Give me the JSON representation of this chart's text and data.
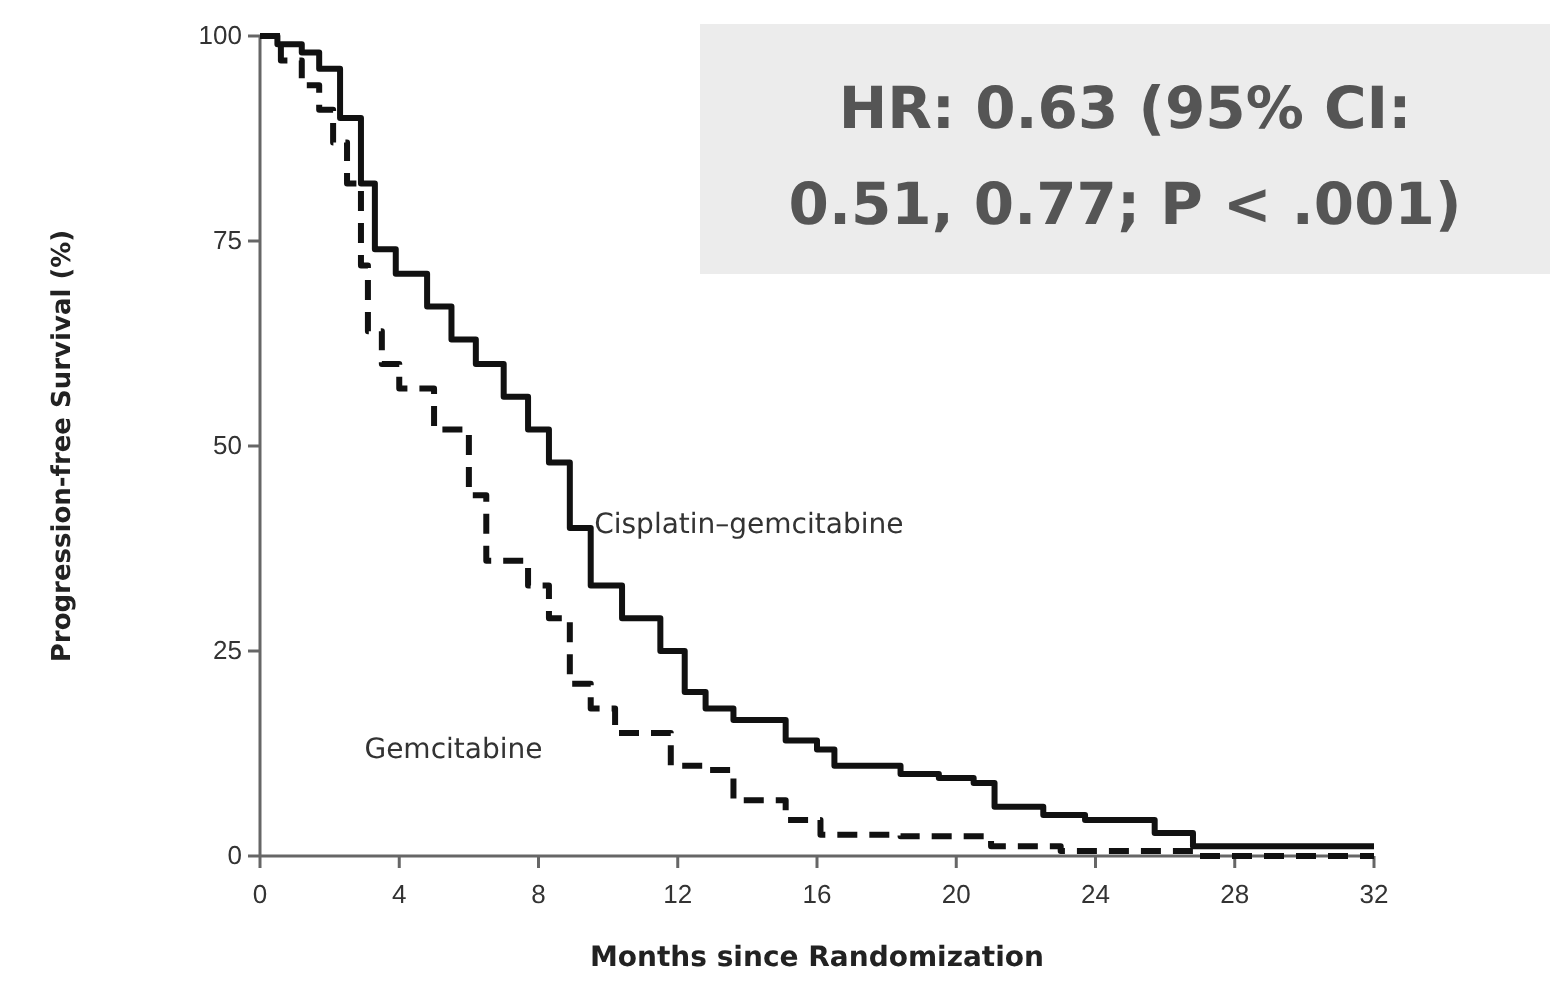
{
  "chart_data": {
    "type": "step",
    "xlabel": "Months since Randomization",
    "ylabel": "Progression-free Survival (%)",
    "xlim": [
      0,
      32
    ],
    "xticks": [
      0,
      4,
      8,
      12,
      16,
      20,
      24,
      28,
      32
    ],
    "ylim": [
      0,
      100
    ],
    "yticks": [
      0,
      25,
      50,
      75,
      100
    ],
    "grid": false,
    "marker": "none",
    "annotations": [
      "HR: 0.63 (95% CI: 0.51, 0.77; P < .001)"
    ],
    "series": [
      {
        "name": "Cisplatin–gemcitabine",
        "color": "#111111",
        "line_style": "solid",
        "x": [
          0,
          0.5,
          1.2,
          1.7,
          2.3,
          2.9,
          3.3,
          3.9,
          4.8,
          5.5,
          6.2,
          7,
          7.7,
          8.3,
          8.9,
          9.5,
          10.4,
          11,
          11.5,
          12.2,
          12.8,
          13.6,
          15.1,
          16,
          16.5,
          18.4,
          19.5,
          20.5,
          21.1,
          22.5,
          23.7,
          25.7,
          26.8,
          32
        ],
        "values": [
          100,
          99,
          98,
          96,
          90,
          82,
          74,
          71,
          67,
          63,
          60,
          56,
          52,
          48,
          40,
          33,
          29,
          29,
          25,
          20,
          18,
          16.6,
          14.1,
          13,
          11,
          10,
          9.5,
          8.9,
          6,
          5,
          4.4,
          2.8,
          1.2,
          1.2
        ]
      },
      {
        "name": "Gemcitabine",
        "color": "#111111",
        "line_style": "dashed",
        "x": [
          0,
          0.6,
          1.2,
          1.7,
          2.1,
          2.5,
          2.9,
          3.1,
          3.5,
          4,
          5,
          6,
          6.5,
          7.7,
          8.3,
          8.9,
          9.5,
          10.2,
          11.8,
          12.8,
          13.6,
          15.1,
          16.1,
          18.4,
          21,
          23,
          27,
          32
        ],
        "values": [
          100,
          97,
          94,
          91,
          87,
          82,
          72,
          64,
          60,
          57,
          52,
          44,
          36,
          33,
          29,
          21,
          18,
          15,
          11,
          10.5,
          6.8,
          4.4,
          2.6,
          2.4,
          1.2,
          0.6,
          0,
          0
        ]
      }
    ]
  }
}
